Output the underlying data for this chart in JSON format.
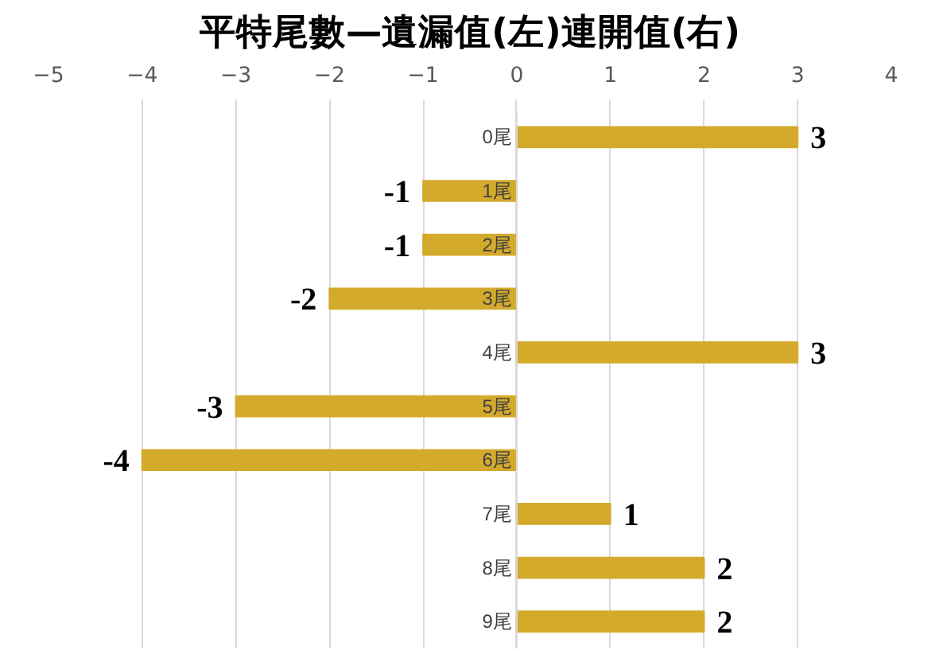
{
  "chart_data": {
    "type": "bar",
    "orientation": "horizontal",
    "title": "平特尾數—遺漏值(左)連開值(右)",
    "categories": [
      "0尾",
      "1尾",
      "2尾",
      "3尾",
      "4尾",
      "5尾",
      "6尾",
      "7尾",
      "8尾",
      "9尾"
    ],
    "values": [
      3,
      -1,
      -1,
      -2,
      3,
      -3,
      -4,
      1,
      2,
      2
    ],
    "color": "#d4aa2c",
    "xlim": [
      -5,
      4
    ],
    "xticks": [
      -5,
      -4,
      -3,
      -2,
      -1,
      0,
      1,
      2,
      3,
      4
    ],
    "grid": "x",
    "data_labels": true
  }
}
